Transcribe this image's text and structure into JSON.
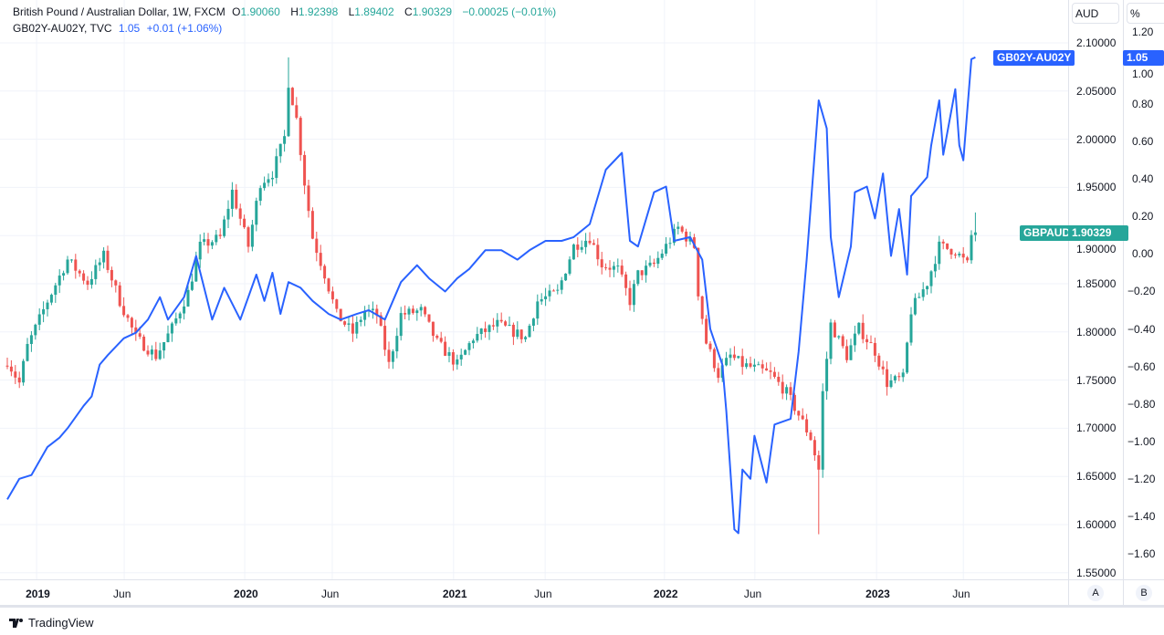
{
  "legend": {
    "main_title": "British Pound / Australian Dollar, 1W, FXCM",
    "open_label": "O",
    "open": "1.90060",
    "high_label": "H",
    "high": "1.92398",
    "low_label": "L",
    "low": "1.89402",
    "close_label": "C",
    "close": "1.90329",
    "change": "−0.00025 (−0.01%)",
    "overlay_title": "GB02Y-AU02Y, TVC",
    "overlay_value": "1.05",
    "overlay_change": "+0.01 (+1.06%)"
  },
  "axes": {
    "aud_unit": "AUD",
    "pct_unit": "%",
    "scale_a": "A",
    "scale_b": "B"
  },
  "tags": {
    "overlay_name": "GB02Y-AU02Y",
    "overlay_value": "1.05",
    "main_name": "GBPAUD",
    "main_value": "1.90329"
  },
  "footer": {
    "brand": "TradingView"
  },
  "colors": {
    "up": "#26a69a",
    "down": "#ef5350",
    "overlay": "#2962ff",
    "grid": "#f0f3fa"
  },
  "chart_data": {
    "type": "candlestick+line",
    "x_unit": "weeks since first visible bar (Nov 2018), weekly bars",
    "aud_ticks": [
      "2.10000",
      "2.05000",
      "2.00000",
      "1.95000",
      "1.90000",
      "1.85000",
      "1.80000",
      "1.75000",
      "1.70000",
      "1.65000",
      "1.60000",
      "1.55000"
    ],
    "aud_range": [
      1.55,
      2.1
    ],
    "pct_ticks": [
      "1.20",
      "1.00",
      "0.80",
      "0.60",
      "0.40",
      "0.20",
      "0.00",
      "-0.20",
      "-0.40",
      "-0.60",
      "-0.80",
      "-1.00",
      "-1.20",
      "-1.40",
      "-1.60"
    ],
    "pct_range": [
      -1.6,
      1.2
    ],
    "time_ticks": [
      {
        "label": "2019",
        "week": 7.3,
        "year": true
      },
      {
        "label": "Jun",
        "week": 29.1
      },
      {
        "label": "2020",
        "week": 59.1,
        "year": true
      },
      {
        "label": "Jun",
        "week": 80.9
      },
      {
        "label": "2021",
        "week": 111.1,
        "year": true
      },
      {
        "label": "Jun",
        "week": 133.9
      },
      {
        "label": "2022",
        "week": 163.6,
        "year": true
      },
      {
        "label": "Jun",
        "week": 186.1
      },
      {
        "label": "2023",
        "week": 216.4,
        "year": true
      },
      {
        "label": "Jun",
        "week": 238
      }
    ],
    "gbpaud_close_keypoints": [
      [
        0,
        1.77
      ],
      [
        3,
        1.747
      ],
      [
        5,
        1.785
      ],
      [
        10,
        1.832
      ],
      [
        15,
        1.875
      ],
      [
        20,
        1.851
      ],
      [
        24,
        1.879
      ],
      [
        28,
        1.832
      ],
      [
        32,
        1.794
      ],
      [
        37,
        1.775
      ],
      [
        41,
        1.804
      ],
      [
        45,
        1.841
      ],
      [
        48,
        1.889
      ],
      [
        53,
        1.898
      ],
      [
        56,
        1.946
      ],
      [
        60,
        1.889
      ],
      [
        63,
        1.955
      ],
      [
        66,
        1.965
      ],
      [
        69,
        2.002
      ],
      [
        70,
        2.059
      ],
      [
        72,
        2.021
      ],
      [
        74,
        1.955
      ],
      [
        76,
        1.898
      ],
      [
        79,
        1.86
      ],
      [
        82,
        1.818
      ],
      [
        86,
        1.799
      ],
      [
        89,
        1.822
      ],
      [
        92,
        1.818
      ],
      [
        95,
        1.766
      ],
      [
        98,
        1.818
      ],
      [
        103,
        1.822
      ],
      [
        107,
        1.789
      ],
      [
        112,
        1.766
      ],
      [
        116,
        1.794
      ],
      [
        122,
        1.808
      ],
      [
        129,
        1.794
      ],
      [
        132,
        1.832
      ],
      [
        137,
        1.841
      ],
      [
        141,
        1.889
      ],
      [
        145,
        1.898
      ],
      [
        148,
        1.87
      ],
      [
        152,
        1.865
      ],
      [
        155,
        1.832
      ],
      [
        157,
        1.86
      ],
      [
        161,
        1.87
      ],
      [
        164,
        1.889
      ],
      [
        167,
        1.908
      ],
      [
        171,
        1.889
      ],
      [
        172,
        1.841
      ],
      [
        174,
        1.789
      ],
      [
        177,
        1.756
      ],
      [
        180,
        1.775
      ],
      [
        183,
        1.766
      ],
      [
        187,
        1.761
      ],
      [
        190,
        1.756
      ],
      [
        194,
        1.737
      ],
      [
        197,
        1.714
      ],
      [
        200,
        1.69
      ],
      [
        202,
        1.657
      ],
      [
        203,
        1.737
      ],
      [
        205,
        1.808
      ],
      [
        209,
        1.775
      ],
      [
        212,
        1.804
      ],
      [
        216,
        1.78
      ],
      [
        219,
        1.747
      ],
      [
        223,
        1.752
      ],
      [
        225,
        1.822
      ],
      [
        229,
        1.851
      ],
      [
        232,
        1.889
      ],
      [
        236,
        1.884
      ],
      [
        239,
        1.87
      ],
      [
        240,
        1.9006
      ],
      [
        241,
        1.90329
      ]
    ],
    "last_bar": {
      "open": 1.9006,
      "high": 1.92398,
      "low": 1.89402,
      "close": 1.90329
    },
    "notable_wicks": [
      {
        "week": 70,
        "high": 2.085
      },
      {
        "week": 202,
        "low": 1.59
      }
    ],
    "spread_series": {
      "name": "GB02Y-AU02Y",
      "points": [
        [
          0,
          -1.31
        ],
        [
          3,
          -1.2
        ],
        [
          6,
          -1.18
        ],
        [
          10,
          -1.03
        ],
        [
          13,
          -0.98
        ],
        [
          15,
          -0.93
        ],
        [
          19,
          -0.81
        ],
        [
          21,
          -0.76
        ],
        [
          23,
          -0.59
        ],
        [
          25,
          -0.54
        ],
        [
          29,
          -0.45
        ],
        [
          32,
          -0.42
        ],
        [
          35,
          -0.35
        ],
        [
          38,
          -0.23
        ],
        [
          40,
          -0.35
        ],
        [
          44,
          -0.23
        ],
        [
          47,
          -0.01
        ],
        [
          51,
          -0.35
        ],
        [
          54,
          -0.18
        ],
        [
          58,
          -0.35
        ],
        [
          62,
          -0.11
        ],
        [
          64,
          -0.25
        ],
        [
          66,
          -0.1
        ],
        [
          68,
          -0.32
        ],
        [
          70,
          -0.15
        ],
        [
          73,
          -0.18
        ],
        [
          76,
          -0.25
        ],
        [
          80,
          -0.32
        ],
        [
          83,
          -0.35
        ],
        [
          87,
          -0.32
        ],
        [
          90,
          -0.3
        ],
        [
          94,
          -0.35
        ],
        [
          98,
          -0.15
        ],
        [
          102,
          -0.06
        ],
        [
          105,
          -0.13
        ],
        [
          109,
          -0.2
        ],
        [
          112,
          -0.13
        ],
        [
          115,
          -0.08
        ],
        [
          119,
          0.02
        ],
        [
          123,
          0.02
        ],
        [
          127,
          -0.03
        ],
        [
          130,
          0.02
        ],
        [
          134,
          0.07
        ],
        [
          138,
          0.07
        ],
        [
          141,
          0.09
        ],
        [
          145,
          0.16
        ],
        [
          149,
          0.45
        ],
        [
          153,
          0.54
        ],
        [
          155,
          0.07
        ],
        [
          157,
          0.04
        ],
        [
          161,
          0.33
        ],
        [
          164,
          0.36
        ],
        [
          166,
          0.07
        ],
        [
          170,
          0.09
        ],
        [
          173,
          -0.03
        ],
        [
          175,
          -0.4
        ],
        [
          178,
          -0.59
        ],
        [
          179,
          -0.84
        ],
        [
          181,
          -1.47
        ],
        [
          182,
          -1.49
        ],
        [
          183,
          -1.15
        ],
        [
          185,
          -1.2
        ],
        [
          186,
          -0.97
        ],
        [
          189,
          -1.22
        ],
        [
          191,
          -0.91
        ],
        [
          195,
          -0.88
        ],
        [
          197,
          -0.52
        ],
        [
          199,
          -0.03
        ],
        [
          202,
          0.82
        ],
        [
          204,
          0.67
        ],
        [
          205,
          0.09
        ],
        [
          207,
          -0.23
        ],
        [
          210,
          0.04
        ],
        [
          211,
          0.33
        ],
        [
          214,
          0.36
        ],
        [
          216,
          0.19
        ],
        [
          218,
          0.43
        ],
        [
          220,
          -0.01
        ],
        [
          222,
          0.24
        ],
        [
          224,
          -0.11
        ],
        [
          225,
          0.31
        ],
        [
          229,
          0.41
        ],
        [
          230,
          0.58
        ],
        [
          232,
          0.82
        ],
        [
          233,
          0.53
        ],
        [
          236,
          0.88
        ],
        [
          237,
          0.58
        ],
        [
          238,
          0.5
        ],
        [
          240,
          1.04
        ],
        [
          241,
          1.05
        ]
      ]
    }
  }
}
